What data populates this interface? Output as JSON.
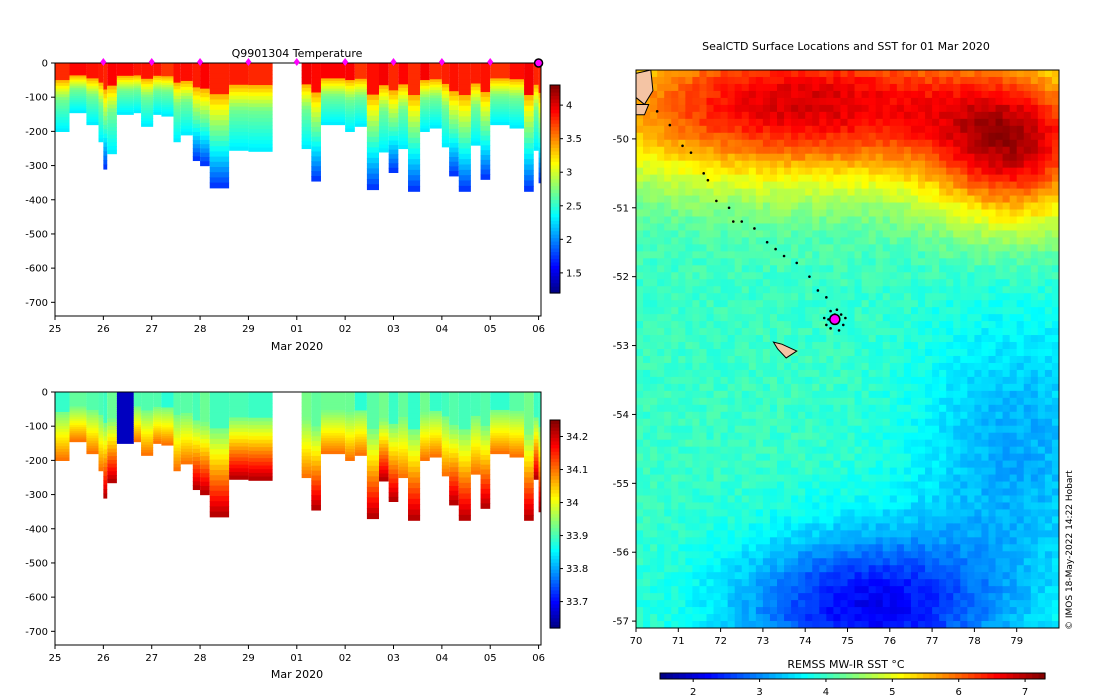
{
  "credit": "© IMOS 18-May-2022 14:22 Hobart",
  "chart_data": [
    {
      "id": "temperature",
      "type": "heatmap",
      "title": "Q9901304  Temperature",
      "xlabel": "Mar 2020",
      "xlim": [
        0,
        10.05
      ],
      "xticks": [
        0,
        1,
        2,
        3,
        4,
        5,
        6,
        7,
        8,
        9,
        10
      ],
      "xticklabels": [
        "25",
        "26",
        "27",
        "28",
        "29",
        "01",
        "02",
        "03",
        "04",
        "05",
        "06"
      ],
      "ylim": [
        -740,
        0
      ],
      "yticks": [
        0,
        -100,
        -200,
        -300,
        -400,
        -500,
        -600,
        -700
      ],
      "yticklabels": [
        "0",
        "-100",
        "-200",
        "-300",
        "-400",
        "-500",
        "-600",
        "-700"
      ],
      "colorbar": {
        "min": 1.2,
        "max": 4.3,
        "ticks": [
          1.5,
          2,
          2.5,
          3,
          3.5,
          4
        ],
        "ticklabels": [
          "1.5",
          "2",
          "2.5",
          "3",
          "3.5",
          "4"
        ]
      },
      "marker_days": [
        1,
        2,
        3,
        4,
        5,
        6,
        7,
        8,
        9
      ],
      "end_marker_day": 10,
      "profiles": [
        {
          "x": 0.0,
          "w": 0.3,
          "depth": 200
        },
        {
          "x": 0.3,
          "w": 0.35,
          "depth": 145
        },
        {
          "x": 0.65,
          "w": 0.25,
          "depth": 180
        },
        {
          "x": 0.9,
          "w": 0.1,
          "depth": 230
        },
        {
          "x": 1.0,
          "w": 0.08,
          "depth": 310
        },
        {
          "x": 1.08,
          "w": 0.2,
          "depth": 265
        },
        {
          "x": 1.28,
          "w": 0.35,
          "depth": 150
        },
        {
          "x": 1.63,
          "w": 0.15,
          "depth": 145
        },
        {
          "x": 1.78,
          "w": 0.25,
          "depth": 185
        },
        {
          "x": 2.03,
          "w": 0.17,
          "depth": 150
        },
        {
          "x": 2.2,
          "w": 0.25,
          "depth": 155
        },
        {
          "x": 2.45,
          "w": 0.15,
          "depth": 230
        },
        {
          "x": 2.6,
          "w": 0.25,
          "depth": 210
        },
        {
          "x": 2.85,
          "w": 0.15,
          "depth": 285
        },
        {
          "x": 3.0,
          "w": 0.2,
          "depth": 300
        },
        {
          "x": 3.2,
          "w": 0.4,
          "depth": 365
        },
        {
          "x": 3.6,
          "w": 0.4,
          "depth": 255
        },
        {
          "x": 4.0,
          "w": 0.5,
          "depth": 258
        },
        {
          "x": 5.1,
          "w": 0.2,
          "depth": 250
        },
        {
          "x": 5.3,
          "w": 0.2,
          "depth": 345
        },
        {
          "x": 5.5,
          "w": 0.5,
          "depth": 180
        },
        {
          "x": 6.0,
          "w": 0.2,
          "depth": 200
        },
        {
          "x": 6.2,
          "w": 0.25,
          "depth": 185
        },
        {
          "x": 6.45,
          "w": 0.25,
          "depth": 370
        },
        {
          "x": 6.7,
          "w": 0.2,
          "depth": 260
        },
        {
          "x": 6.9,
          "w": 0.2,
          "depth": 320
        },
        {
          "x": 7.1,
          "w": 0.2,
          "depth": 250
        },
        {
          "x": 7.3,
          "w": 0.25,
          "depth": 375
        },
        {
          "x": 7.55,
          "w": 0.2,
          "depth": 200
        },
        {
          "x": 7.75,
          "w": 0.25,
          "depth": 190
        },
        {
          "x": 8.0,
          "w": 0.15,
          "depth": 245
        },
        {
          "x": 8.15,
          "w": 0.2,
          "depth": 330
        },
        {
          "x": 8.35,
          "w": 0.25,
          "depth": 375
        },
        {
          "x": 8.6,
          "w": 0.2,
          "depth": 240
        },
        {
          "x": 8.8,
          "w": 0.2,
          "depth": 340
        },
        {
          "x": 9.0,
          "w": 0.4,
          "depth": 180
        },
        {
          "x": 9.4,
          "w": 0.3,
          "depth": 190
        },
        {
          "x": 9.7,
          "w": 0.2,
          "depth": 375
        },
        {
          "x": 9.9,
          "w": 0.1,
          "depth": 255
        },
        {
          "x": 10.0,
          "w": 0.05,
          "depth": 350
        }
      ]
    },
    {
      "id": "salinity",
      "type": "heatmap",
      "title": "",
      "xlabel": "Mar 2020",
      "xlim": [
        0,
        10.05
      ],
      "xticks": [
        0,
        1,
        2,
        3,
        4,
        5,
        6,
        7,
        8,
        9,
        10
      ],
      "xticklabels": [
        "25",
        "26",
        "27",
        "28",
        "29",
        "01",
        "02",
        "03",
        "04",
        "05",
        "06"
      ],
      "ylim": [
        -740,
        0
      ],
      "yticks": [
        0,
        -100,
        -200,
        -300,
        -400,
        -500,
        -600,
        -700
      ],
      "yticklabels": [
        "0",
        "-100",
        "-200",
        "-300",
        "-400",
        "-500",
        "-600",
        "-700"
      ],
      "colorbar": {
        "min": 33.62,
        "max": 34.25,
        "ticks": [
          33.7,
          33.8,
          33.9,
          34,
          34.1,
          34.2
        ],
        "ticklabels": [
          "33.7",
          "33.8",
          "33.9",
          "34",
          "34.1",
          "34.2"
        ]
      },
      "profiles": [
        {
          "x": 0.0,
          "w": 0.3,
          "depth": 200
        },
        {
          "x": 0.3,
          "w": 0.35,
          "depth": 145
        },
        {
          "x": 0.65,
          "w": 0.25,
          "depth": 180
        },
        {
          "x": 0.9,
          "w": 0.1,
          "depth": 230
        },
        {
          "x": 1.0,
          "w": 0.08,
          "depth": 310
        },
        {
          "x": 1.08,
          "w": 0.2,
          "depth": 265
        },
        {
          "x": 1.28,
          "w": 0.35,
          "depth": 150
        },
        {
          "x": 1.63,
          "w": 0.15,
          "depth": 145
        },
        {
          "x": 1.78,
          "w": 0.25,
          "depth": 185
        },
        {
          "x": 2.03,
          "w": 0.17,
          "depth": 150
        },
        {
          "x": 2.2,
          "w": 0.25,
          "depth": 155
        },
        {
          "x": 2.45,
          "w": 0.15,
          "depth": 230
        },
        {
          "x": 2.6,
          "w": 0.25,
          "depth": 210
        },
        {
          "x": 2.85,
          "w": 0.15,
          "depth": 285
        },
        {
          "x": 3.0,
          "w": 0.2,
          "depth": 300
        },
        {
          "x": 3.2,
          "w": 0.4,
          "depth": 365
        },
        {
          "x": 3.6,
          "w": 0.4,
          "depth": 255
        },
        {
          "x": 4.0,
          "w": 0.5,
          "depth": 258
        },
        {
          "x": 5.1,
          "w": 0.2,
          "depth": 250
        },
        {
          "x": 5.3,
          "w": 0.2,
          "depth": 345
        },
        {
          "x": 5.5,
          "w": 0.5,
          "depth": 180
        },
        {
          "x": 6.0,
          "w": 0.2,
          "depth": 200
        },
        {
          "x": 6.2,
          "w": 0.25,
          "depth": 185
        },
        {
          "x": 6.45,
          "w": 0.25,
          "depth": 370
        },
        {
          "x": 6.7,
          "w": 0.2,
          "depth": 260
        },
        {
          "x": 6.9,
          "w": 0.2,
          "depth": 320
        },
        {
          "x": 7.1,
          "w": 0.2,
          "depth": 250
        },
        {
          "x": 7.3,
          "w": 0.25,
          "depth": 375
        },
        {
          "x": 7.55,
          "w": 0.2,
          "depth": 200
        },
        {
          "x": 7.75,
          "w": 0.25,
          "depth": 190
        },
        {
          "x": 8.0,
          "w": 0.15,
          "depth": 245
        },
        {
          "x": 8.15,
          "w": 0.2,
          "depth": 330
        },
        {
          "x": 8.35,
          "w": 0.25,
          "depth": 375
        },
        {
          "x": 8.6,
          "w": 0.2,
          "depth": 240
        },
        {
          "x": 8.8,
          "w": 0.2,
          "depth": 340
        },
        {
          "x": 9.0,
          "w": 0.4,
          "depth": 180
        },
        {
          "x": 9.4,
          "w": 0.3,
          "depth": 190
        },
        {
          "x": 9.7,
          "w": 0.2,
          "depth": 375
        },
        {
          "x": 9.9,
          "w": 0.1,
          "depth": 255
        },
        {
          "x": 10.0,
          "w": 0.05,
          "depth": 350
        }
      ]
    },
    {
      "id": "sst-map",
      "type": "heatmap",
      "title": "SealCTD Surface Locations and SST for 01 Mar 2020",
      "xlim": [
        70,
        80
      ],
      "ylim": [
        -57.1,
        -49.0
      ],
      "xticks": [
        70,
        71,
        72,
        73,
        74,
        75,
        76,
        77,
        78,
        79
      ],
      "xticklabels": [
        "70",
        "71",
        "72",
        "73",
        "74",
        "75",
        "76",
        "77",
        "78",
        "79"
      ],
      "yticks": [
        -50,
        -51,
        -52,
        -53,
        -54,
        -55,
        -56,
        -57
      ],
      "yticklabels": [
        "-50",
        "-51",
        "-52",
        "-53",
        "-54",
        "-55",
        "-56",
        "-57"
      ],
      "colorbar": {
        "label": "REMSS MW-IR SST °C",
        "min": 1.5,
        "max": 7.3,
        "ticks": [
          2,
          3,
          4,
          5,
          6,
          7
        ],
        "ticklabels": [
          "2",
          "3",
          "4",
          "5",
          "6",
          "7"
        ]
      },
      "current_location": {
        "lon": 74.7,
        "lat": -52.62
      },
      "track": [
        {
          "lon": 70.5,
          "lat": -49.6
        },
        {
          "lon": 70.8,
          "lat": -49.8
        },
        {
          "lon": 71.1,
          "lat": -50.1
        },
        {
          "lon": 71.3,
          "lat": -50.2
        },
        {
          "lon": 71.6,
          "lat": -50.5
        },
        {
          "lon": 71.7,
          "lat": -50.6
        },
        {
          "lon": 71.9,
          "lat": -50.9
        },
        {
          "lon": 72.2,
          "lat": -51.0
        },
        {
          "lon": 72.3,
          "lat": -51.2
        },
        {
          "lon": 72.5,
          "lat": -51.2
        },
        {
          "lon": 72.8,
          "lat": -51.3
        },
        {
          "lon": 73.1,
          "lat": -51.5
        },
        {
          "lon": 73.3,
          "lat": -51.6
        },
        {
          "lon": 73.5,
          "lat": -51.7
        },
        {
          "lon": 73.8,
          "lat": -51.8
        },
        {
          "lon": 74.1,
          "lat": -52.0
        },
        {
          "lon": 74.3,
          "lat": -52.2
        },
        {
          "lon": 74.5,
          "lat": -52.3
        },
        {
          "lon": 74.6,
          "lat": -52.5
        },
        {
          "lon": 74.5,
          "lat": -52.7
        },
        {
          "lon": 74.7,
          "lat": -52.55
        },
        {
          "lon": 74.9,
          "lat": -52.7
        },
        {
          "lon": 74.55,
          "lat": -52.62
        },
        {
          "lon": 74.85,
          "lat": -52.55
        },
        {
          "lon": 74.6,
          "lat": -52.75
        },
        {
          "lon": 74.8,
          "lat": -52.78
        },
        {
          "lon": 74.95,
          "lat": -52.6
        },
        {
          "lon": 74.45,
          "lat": -52.6
        },
        {
          "lon": 74.75,
          "lat": -52.48
        }
      ],
      "islands": [
        [
          {
            "lon": 70.0,
            "lat": -49.05
          },
          {
            "lon": 70.35,
            "lat": -49.0
          },
          {
            "lon": 70.4,
            "lat": -49.3
          },
          {
            "lon": 70.2,
            "lat": -49.5
          },
          {
            "lon": 70.0,
            "lat": -49.4
          }
        ],
        [
          {
            "lon": 70.0,
            "lat": -49.5
          },
          {
            "lon": 70.3,
            "lat": -49.5
          },
          {
            "lon": 70.2,
            "lat": -49.65
          },
          {
            "lon": 70.0,
            "lat": -49.65
          }
        ],
        [
          {
            "lon": 73.25,
            "lat": -52.95
          },
          {
            "lon": 73.45,
            "lat": -52.98
          },
          {
            "lon": 73.8,
            "lat": -53.08
          },
          {
            "lon": 73.55,
            "lat": -53.18
          },
          {
            "lon": 73.35,
            "lat": -53.05
          }
        ]
      ]
    }
  ]
}
